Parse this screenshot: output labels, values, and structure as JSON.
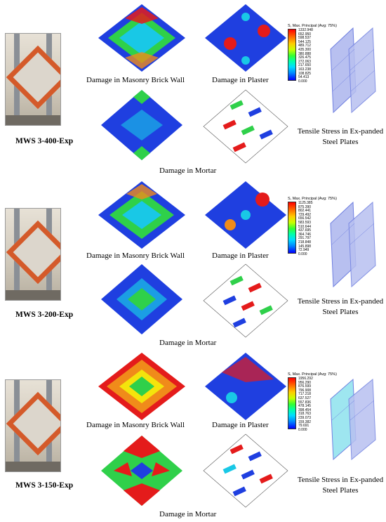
{
  "captions": {
    "brick": "Damage in Masonry Brick Wall",
    "plaster": "Damage in Plaster",
    "steel": "Tensile Stress in Ex-panded Steel Plates",
    "mortar": "Damage in Mortar"
  },
  "legend_title": "S, Max. Principal (Avg: 75%)",
  "panels": [
    {
      "specimen": "MWS 3-400-Exp",
      "legend": [
        "1332.948",
        "652.950",
        "598.537",
        "544.125",
        "489.712",
        "435.300",
        "380.888",
        "326.475",
        "272.063",
        "217.650",
        "163.238",
        "108.825",
        "54.413",
        "0.000"
      ]
    },
    {
      "specimen": "MWS 3-200-Exp",
      "legend": [
        "1125.385",
        "875.390",
        "802.441",
        "729.492",
        "656.542",
        "583.593",
        "510.644",
        "437.695",
        "364.746",
        "291.797",
        "218.848",
        "145.898",
        "72.949",
        "0.000"
      ]
    },
    {
      "specimen": "MWS 3-150-Exp",
      "legend": [
        "1956.292",
        "956.290",
        "876.599",
        "796.908",
        "717.218",
        "637.527",
        "557.836",
        "478.145",
        "398.454",
        "318.763",
        "239.073",
        "159.382",
        "79.691",
        "0.000"
      ]
    }
  ],
  "colors": {
    "blue": "#1f3fe0",
    "cyan": "#19c8e6",
    "green": "#2fd04a",
    "yellow": "#f4e40c",
    "orange": "#f08b1a",
    "red": "#e41b1b",
    "steel": "#6f7fe0"
  }
}
